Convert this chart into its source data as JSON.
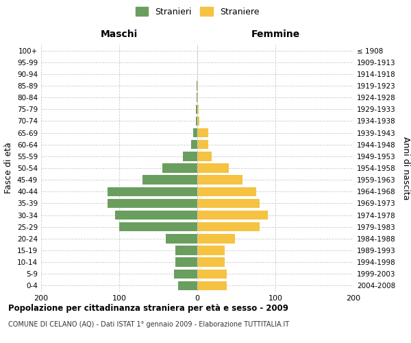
{
  "age_groups": [
    "0-4",
    "5-9",
    "10-14",
    "15-19",
    "20-24",
    "25-29",
    "30-34",
    "35-39",
    "40-44",
    "45-49",
    "50-54",
    "55-59",
    "60-64",
    "65-69",
    "70-74",
    "75-79",
    "80-84",
    "85-89",
    "90-94",
    "95-99",
    "100+"
  ],
  "birth_years": [
    "2004-2008",
    "1999-2003",
    "1994-1998",
    "1989-1993",
    "1984-1988",
    "1979-1983",
    "1974-1978",
    "1969-1973",
    "1964-1968",
    "1959-1963",
    "1954-1958",
    "1949-1953",
    "1944-1948",
    "1939-1943",
    "1934-1938",
    "1929-1933",
    "1924-1928",
    "1919-1923",
    "1914-1918",
    "1909-1913",
    "≤ 1908"
  ],
  "males": [
    25,
    30,
    28,
    28,
    40,
    100,
    105,
    115,
    115,
    70,
    45,
    18,
    8,
    5,
    2,
    2,
    1,
    1,
    0,
    0,
    0
  ],
  "females": [
    38,
    38,
    35,
    35,
    48,
    80,
    90,
    80,
    75,
    58,
    40,
    18,
    14,
    14,
    3,
    2,
    1,
    1,
    0,
    0,
    0
  ],
  "xlim": 200,
  "male_color": "#6a9e5f",
  "female_color": "#f5c242",
  "title": "Popolazione per cittadinanza straniera per età e sesso - 2009",
  "subtitle": "COMUNE DI CELANO (AQ) - Dati ISTAT 1° gennaio 2009 - Elaborazione TUTTITALIA.IT",
  "legend_male": "Stranieri",
  "legend_female": "Straniere",
  "header_left": "Maschi",
  "header_right": "Femmine",
  "ylabel_left": "Fasce di età",
  "ylabel_right": "Anni di nascita",
  "background_color": "#ffffff",
  "grid_color": "#cccccc"
}
